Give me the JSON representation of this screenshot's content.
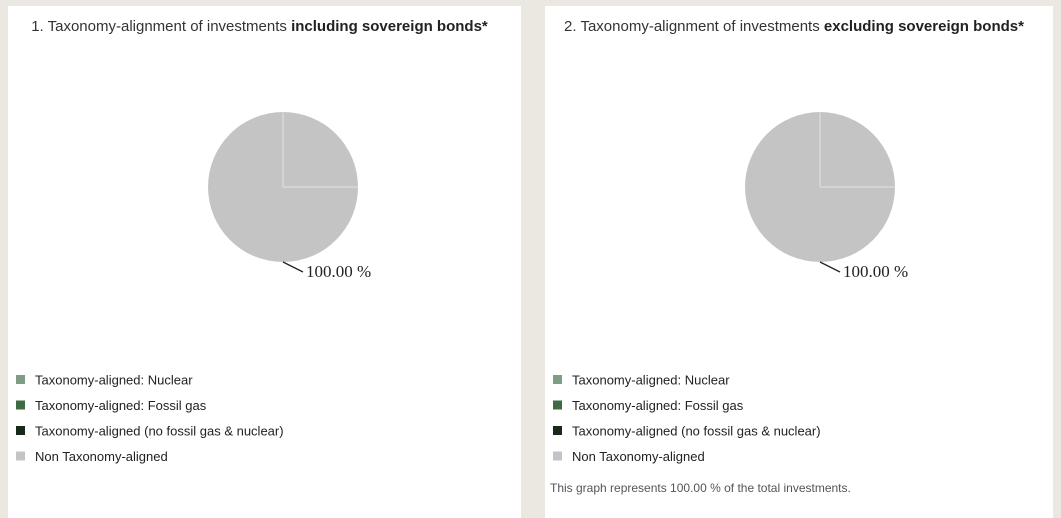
{
  "chart_data": [
    {
      "type": "pie",
      "title": "1. Taxonomy-alignment of investments",
      "title_emphasis": "including sovereign bonds*",
      "categories": [
        "Taxonomy-aligned: Nuclear",
        "Taxonomy-aligned: Fossil gas",
        "Taxonomy-aligned (no fossil gas & nuclear)",
        "Non Taxonomy-aligned"
      ],
      "colors": [
        "#7f9c84",
        "#3e6b43",
        "#17291a",
        "#c4c4c4"
      ],
      "values": [
        0,
        0,
        0,
        100
      ],
      "value_labels": [
        null,
        null,
        null,
        "100.00 %"
      ]
    },
    {
      "type": "pie",
      "title": "2. Taxonomy-alignment of investments",
      "title_emphasis": "excluding sovereign bonds*",
      "categories": [
        "Taxonomy-aligned: Nuclear",
        "Taxonomy-aligned: Fossil gas",
        "Taxonomy-aligned (no fossil gas & nuclear)",
        "Non Taxonomy-aligned"
      ],
      "colors": [
        "#7f9c84",
        "#3e6b43",
        "#17291a",
        "#c4c4c4"
      ],
      "values": [
        0,
        0,
        0,
        100
      ],
      "value_labels": [
        null,
        null,
        null,
        "100.00 %"
      ]
    }
  ],
  "note": "This graph represents 100.00 % of the total investments."
}
